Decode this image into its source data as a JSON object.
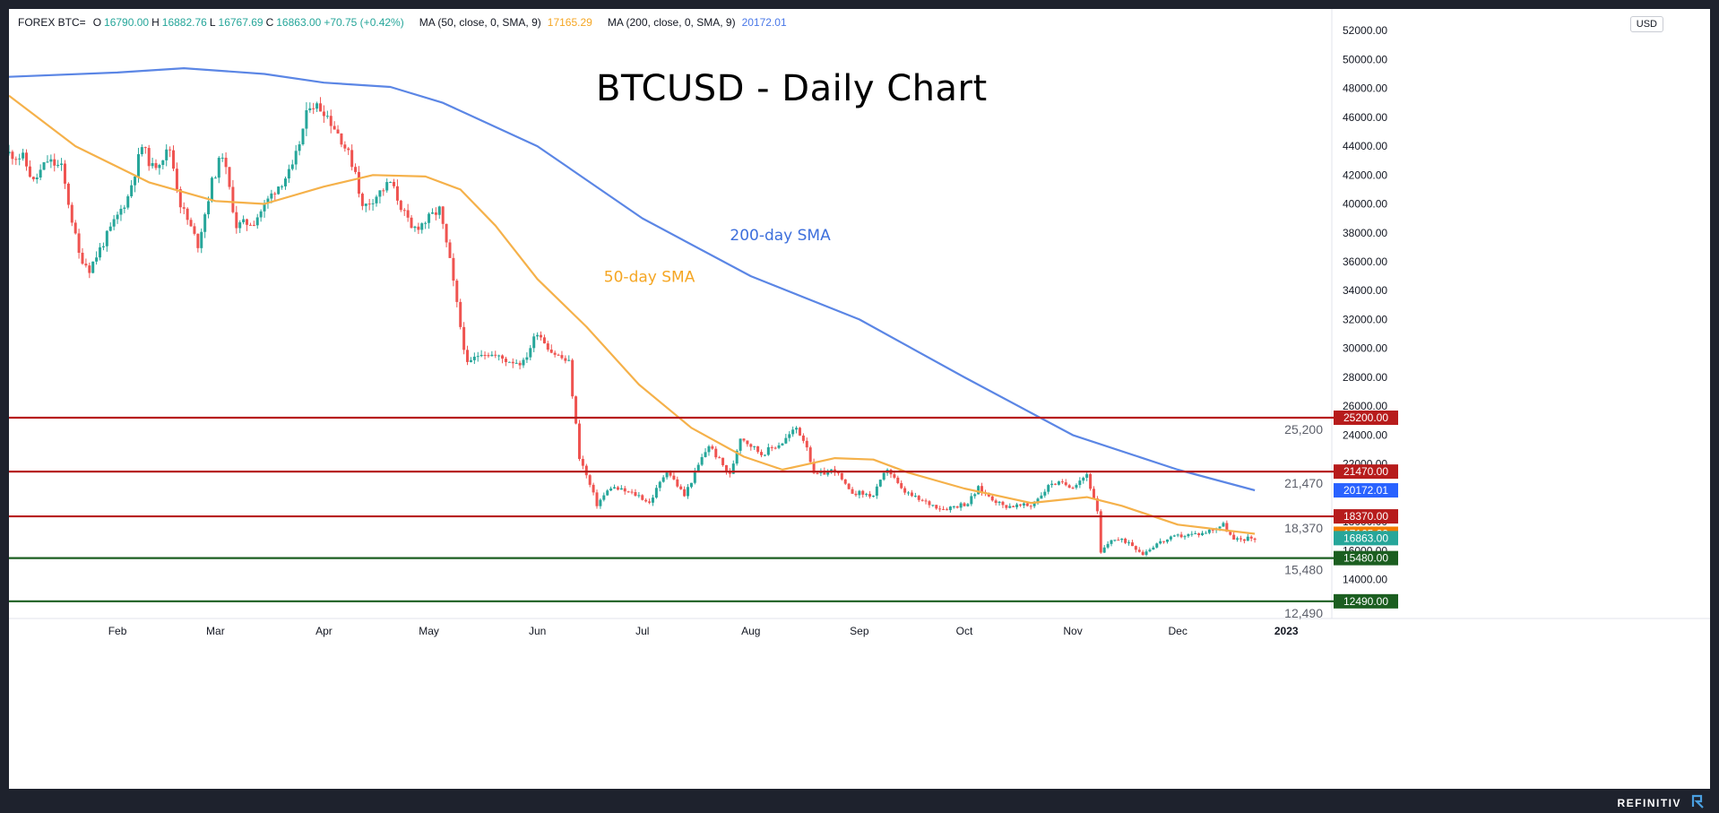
{
  "header": {
    "symbol": "FOREX BTC=",
    "open_label": "O",
    "open": "16790.00",
    "high_label": "H",
    "high": "16882.76",
    "low_label": "L",
    "low": "16767.69",
    "close_label": "C",
    "close": "16863.00",
    "change": "+70.75 (+0.42%)",
    "ma50_label": "MA (50, close, 0, SMA, 9)",
    "ma50_value": "17165.29",
    "ma200_label": "MA (200, close, 0, SMA, 9)",
    "ma200_value": "20172.01",
    "currency": "USD"
  },
  "brand": "REFINITIV",
  "colors": {
    "up": "#26a69a",
    "down": "#ef5350",
    "sma50": "#f5b14a",
    "sma200": "#5b86e5",
    "resistance": "#b71c1c",
    "support": "#1b5e20",
    "current": "#26a69a"
  },
  "chart_data": {
    "type": "candlestick",
    "title": "BTCUSD - Daily Chart",
    "ylim": [
      11300,
      53500
    ],
    "y_ticks": [
      "14000.00",
      "16000.00",
      "18000.00",
      "20000.00",
      "22000.00",
      "24000.00",
      "26000.00",
      "28000.00",
      "30000.00",
      "32000.00",
      "34000.00",
      "36000.00",
      "38000.00",
      "40000.00",
      "42000.00",
      "44000.00",
      "46000.00",
      "48000.00",
      "50000.00",
      "52000.00"
    ],
    "x_ticks": [
      "Feb",
      "Mar",
      "Apr",
      "May",
      "Jun",
      "Jul",
      "Aug",
      "Sep",
      "Oct",
      "Nov",
      "Dec",
      "2023"
    ],
    "x_tick_dates": [
      "2022-02-01",
      "2022-03-01",
      "2022-04-01",
      "2022-05-01",
      "2022-06-01",
      "2022-07-01",
      "2022-08-01",
      "2022-09-01",
      "2022-10-01",
      "2022-11-01",
      "2022-12-01",
      "2023-01-01"
    ],
    "x_range": [
      "2022-01-01",
      "2023-01-14"
    ],
    "last_date": "2022-12-23",
    "price_path": [
      [
        "2022-01-01",
        43500
      ],
      [
        "2022-01-05",
        43200
      ],
      [
        "2022-01-08",
        41500
      ],
      [
        "2022-01-12",
        43000
      ],
      [
        "2022-01-16",
        42500
      ],
      [
        "2022-01-21",
        36500
      ],
      [
        "2022-01-24",
        35500
      ],
      [
        "2022-01-29",
        37800
      ],
      [
        "2022-02-04",
        40500
      ],
      [
        "2022-02-08",
        44000
      ],
      [
        "2022-02-11",
        42500
      ],
      [
        "2022-02-16",
        43800
      ],
      [
        "2022-02-19",
        40000
      ],
      [
        "2022-02-24",
        37200
      ],
      [
        "2022-02-28",
        41500
      ],
      [
        "2022-03-03",
        43500
      ],
      [
        "2022-03-07",
        38500
      ],
      [
        "2022-03-12",
        38800
      ],
      [
        "2022-03-18",
        41000
      ],
      [
        "2022-03-23",
        42400
      ],
      [
        "2022-03-28",
        47000
      ],
      [
        "2022-04-01",
        46500
      ],
      [
        "2022-04-06",
        44500
      ],
      [
        "2022-04-10",
        42300
      ],
      [
        "2022-04-12",
        39700
      ],
      [
        "2022-04-20",
        41500
      ],
      [
        "2022-04-26",
        38200
      ],
      [
        "2022-04-30",
        38800
      ],
      [
        "2022-05-04",
        39600
      ],
      [
        "2022-05-07",
        36000
      ],
      [
        "2022-05-10",
        31500
      ],
      [
        "2022-05-12",
        28800
      ],
      [
        "2022-05-16",
        29800
      ],
      [
        "2022-05-23",
        29200
      ],
      [
        "2022-05-28",
        29000
      ],
      [
        "2022-06-01",
        31200
      ],
      [
        "2022-06-05",
        29800
      ],
      [
        "2022-06-10",
        29000
      ],
      [
        "2022-06-13",
        22500
      ],
      [
        "2022-06-18",
        19200
      ],
      [
        "2022-06-22",
        20400
      ],
      [
        "2022-06-30",
        19800
      ],
      [
        "2022-07-03",
        19300
      ],
      [
        "2022-07-08",
        21600
      ],
      [
        "2022-07-13",
        19800
      ],
      [
        "2022-07-18",
        22400
      ],
      [
        "2022-07-20",
        23300
      ],
      [
        "2022-07-26",
        21200
      ],
      [
        "2022-07-29",
        23900
      ],
      [
        "2022-08-04",
        22700
      ],
      [
        "2022-08-10",
        23500
      ],
      [
        "2022-08-14",
        24500
      ],
      [
        "2022-08-17",
        23300
      ],
      [
        "2022-08-19",
        21200
      ],
      [
        "2022-08-25",
        21600
      ],
      [
        "2022-08-29",
        20100
      ],
      [
        "2022-09-05",
        19800
      ],
      [
        "2022-09-09",
        21700
      ],
      [
        "2022-09-13",
        20200
      ],
      [
        "2022-09-18",
        19500
      ],
      [
        "2022-09-25",
        18900
      ],
      [
        "2022-10-02",
        19300
      ],
      [
        "2022-10-05",
        20300
      ],
      [
        "2022-10-12",
        19100
      ],
      [
        "2022-10-20",
        19100
      ],
      [
        "2022-10-26",
        20700
      ],
      [
        "2022-11-01",
        20500
      ],
      [
        "2022-11-05",
        21300
      ],
      [
        "2022-11-08",
        18600
      ],
      [
        "2022-11-09",
        15800
      ],
      [
        "2022-11-12",
        16800
      ],
      [
        "2022-11-17",
        16600
      ],
      [
        "2022-11-21",
        15800
      ],
      [
        "2022-11-25",
        16500
      ],
      [
        "2022-12-01",
        17000
      ],
      [
        "2022-12-08",
        17200
      ],
      [
        "2022-12-14",
        17800
      ],
      [
        "2022-12-17",
        16700
      ],
      [
        "2022-12-21",
        16850
      ],
      [
        "2022-12-23",
        16863
      ]
    ],
    "sma50": [
      [
        "2022-01-01",
        47500
      ],
      [
        "2022-01-20",
        44000
      ],
      [
        "2022-02-10",
        41500
      ],
      [
        "2022-03-01",
        40200
      ],
      [
        "2022-03-15",
        40000
      ],
      [
        "2022-04-01",
        41200
      ],
      [
        "2022-04-15",
        42000
      ],
      [
        "2022-04-30",
        41900
      ],
      [
        "2022-05-10",
        41000
      ],
      [
        "2022-05-20",
        38500
      ],
      [
        "2022-06-01",
        34800
      ],
      [
        "2022-06-15",
        31500
      ],
      [
        "2022-06-30",
        27500
      ],
      [
        "2022-07-15",
        24500
      ],
      [
        "2022-07-30",
        22500
      ],
      [
        "2022-08-10",
        21600
      ],
      [
        "2022-08-25",
        22400
      ],
      [
        "2022-09-05",
        22300
      ],
      [
        "2022-09-15",
        21400
      ],
      [
        "2022-10-01",
        20300
      ],
      [
        "2022-10-20",
        19300
      ],
      [
        "2022-11-05",
        19700
      ],
      [
        "2022-11-15",
        19100
      ],
      [
        "2022-12-01",
        17800
      ],
      [
        "2022-12-23",
        17165
      ]
    ],
    "sma200": [
      [
        "2022-01-01",
        48800
      ],
      [
        "2022-02-01",
        49100
      ],
      [
        "2022-02-20",
        49400
      ],
      [
        "2022-03-15",
        49000
      ],
      [
        "2022-04-01",
        48400
      ],
      [
        "2022-04-20",
        48100
      ],
      [
        "2022-05-05",
        47000
      ],
      [
        "2022-06-01",
        44000
      ],
      [
        "2022-07-01",
        39000
      ],
      [
        "2022-08-01",
        35000
      ],
      [
        "2022-09-01",
        32000
      ],
      [
        "2022-10-01",
        28000
      ],
      [
        "2022-11-01",
        24000
      ],
      [
        "2022-12-01",
        21600
      ],
      [
        "2022-12-23",
        20172
      ]
    ],
    "series": [
      {
        "name": "50-day SMA"
      },
      {
        "name": "200-day SMA"
      }
    ],
    "series_label_dates": [
      "2022-06-20",
      "2022-07-26"
    ],
    "series_label_levels": [
      34600,
      37500
    ],
    "levels": [
      {
        "value": 25200,
        "label": "25,200",
        "tag": "25200.00",
        "kind": "resistance"
      },
      {
        "value": 21470,
        "label": "21,470",
        "tag": "21470.00",
        "kind": "resistance"
      },
      {
        "value": 18370,
        "label": "18,370",
        "tag": "18370.00",
        "kind": "resistance"
      },
      {
        "value": 15480,
        "label": "15,480",
        "tag": "15480.00",
        "kind": "support"
      },
      {
        "value": 12490,
        "label": "12,490",
        "tag": "12490.00",
        "kind": "support"
      }
    ],
    "tags": [
      {
        "value": 20172.01,
        "text": "20172.01",
        "color": "#2962ff"
      },
      {
        "value": 17165.29,
        "text": "17165.29",
        "color": "#f57c00"
      },
      {
        "value": 16863.0,
        "text": "16863.00",
        "color": "#26a69a"
      }
    ]
  }
}
